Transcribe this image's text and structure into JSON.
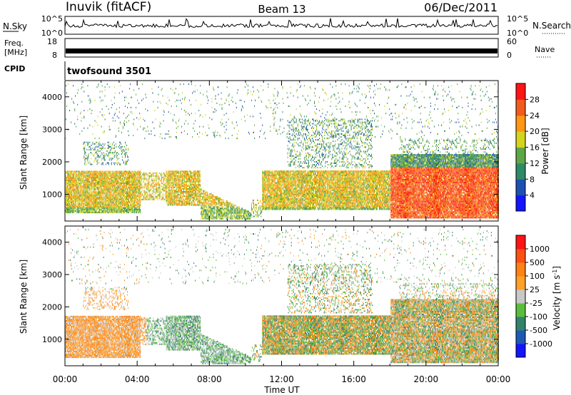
{
  "header": {
    "title": "Inuvik (fitACF)",
    "beam": "Beam 13",
    "date": "06/Dec/2011"
  },
  "noise_panel": {
    "left_label": "N.Sky",
    "right_label": "N.Search",
    "left_ticks": [
      "10^5",
      "10^0"
    ],
    "right_ticks": [
      "10^5",
      "10^0"
    ]
  },
  "freq_panel": {
    "left_label_1": "Freq.",
    "left_label_2": "[MHz]",
    "left_ticks": [
      "18",
      "8"
    ],
    "right_label": "Nave",
    "right_ticks": [
      "60",
      "0"
    ]
  },
  "cpid_panel": {
    "label": "CPID",
    "program": "twofsound 3501"
  },
  "chart_data": [
    {
      "type": "heatmap",
      "parameter": "power",
      "xlabel": "",
      "ylabel": "Slant Range [km]",
      "xlim": [
        0,
        24
      ],
      "ylim": [
        180,
        4500
      ],
      "x_ticks": [
        "00:00",
        "04:00",
        "08:00",
        "12:00",
        "16:00",
        "20:00",
        "00:00"
      ],
      "y_ticks": [
        1000,
        2000,
        3000,
        4000
      ],
      "colorbar": {
        "label": "Power [dB]",
        "tick_labels": [
          "4",
          "8",
          "12",
          "16",
          "20",
          "24",
          "28"
        ],
        "colors": [
          "#1414ff",
          "#1e50b4",
          "#2f8a67",
          "#5fa646",
          "#d4d41e",
          "#ff9614",
          "#f25a1e",
          "#ff1414"
        ]
      }
    },
    {
      "type": "heatmap",
      "parameter": "velocity",
      "xlabel": "Time UT",
      "ylabel": "Slant Range [km]",
      "xlim": [
        0,
        24
      ],
      "ylim": [
        180,
        4500
      ],
      "x_ticks": [
        "00:00",
        "04:00",
        "08:00",
        "12:00",
        "16:00",
        "20:00",
        "00:00"
      ],
      "y_ticks": [
        1000,
        2000,
        3000,
        4000
      ],
      "colorbar": {
        "label": "Velocity [m s^-1]",
        "tick_labels": [
          "1000",
          "500",
          "100",
          "25",
          "-25",
          "-100",
          "-500",
          "-1000"
        ],
        "colors": [
          "#1414ff",
          "#1e5ab4",
          "#32826e",
          "#5abe3c",
          "#c8c8c8",
          "#ffa028",
          "#ff8214",
          "#ff5014",
          "#ff1414"
        ]
      }
    }
  ]
}
